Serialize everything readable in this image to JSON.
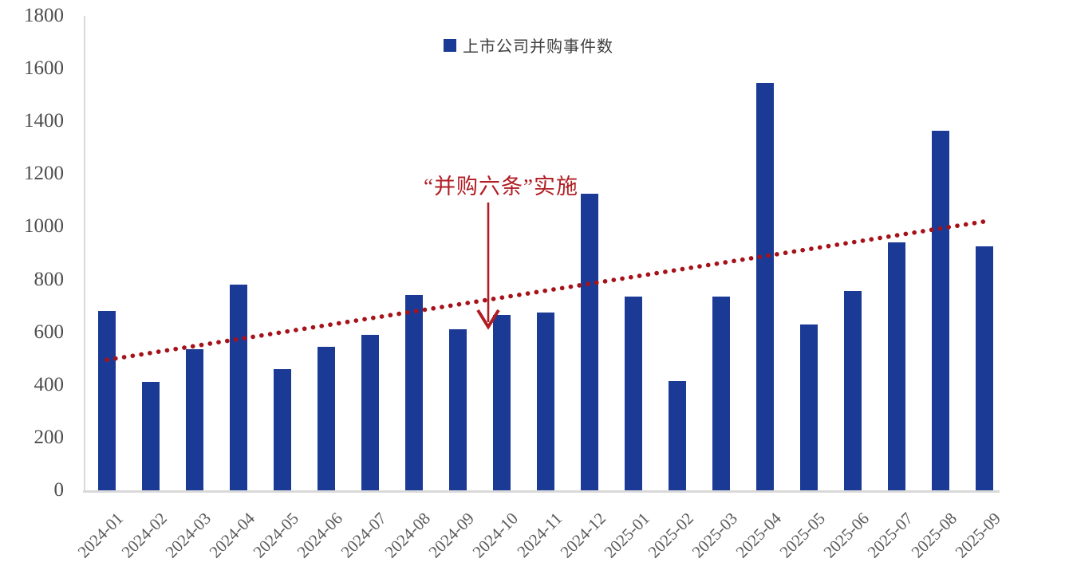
{
  "chart_data": {
    "type": "bar",
    "title": "",
    "xlabel": "",
    "ylabel": "",
    "ylim": [
      0,
      1800
    ],
    "ytick_step": 200,
    "grid": false,
    "legend_position": "top-center",
    "categories": [
      "2024-01",
      "2024-02",
      "2024-03",
      "2024-04",
      "2024-05",
      "2024-06",
      "2024-07",
      "2024-08",
      "2024-09",
      "2024-10",
      "2024-11",
      "2024-12",
      "2025-01",
      "2025-02",
      "2025-03",
      "2025-04",
      "2025-05",
      "2025-06",
      "2025-07",
      "2025-08",
      "2025-09"
    ],
    "series": [
      {
        "name": "上市公司并购事件数",
        "type": "bar",
        "color": "#1b3a96",
        "values": [
          680,
          410,
          535,
          780,
          460,
          545,
          590,
          740,
          610,
          665,
          675,
          1125,
          735,
          415,
          735,
          1545,
          630,
          755,
          940,
          1365,
          925
        ]
      }
    ],
    "trendline": {
      "style": "dotted",
      "color": "#a5121a",
      "start_value": 495,
      "end_value": 1020
    },
    "annotation": {
      "text": "“并购六条”实施",
      "color": "#b01e24",
      "arrow_target_category": "2024-10"
    },
    "axis_color": "#d9d9d9",
    "ytick_color": "#4d4d4d",
    "xtick_color": "#595959"
  }
}
